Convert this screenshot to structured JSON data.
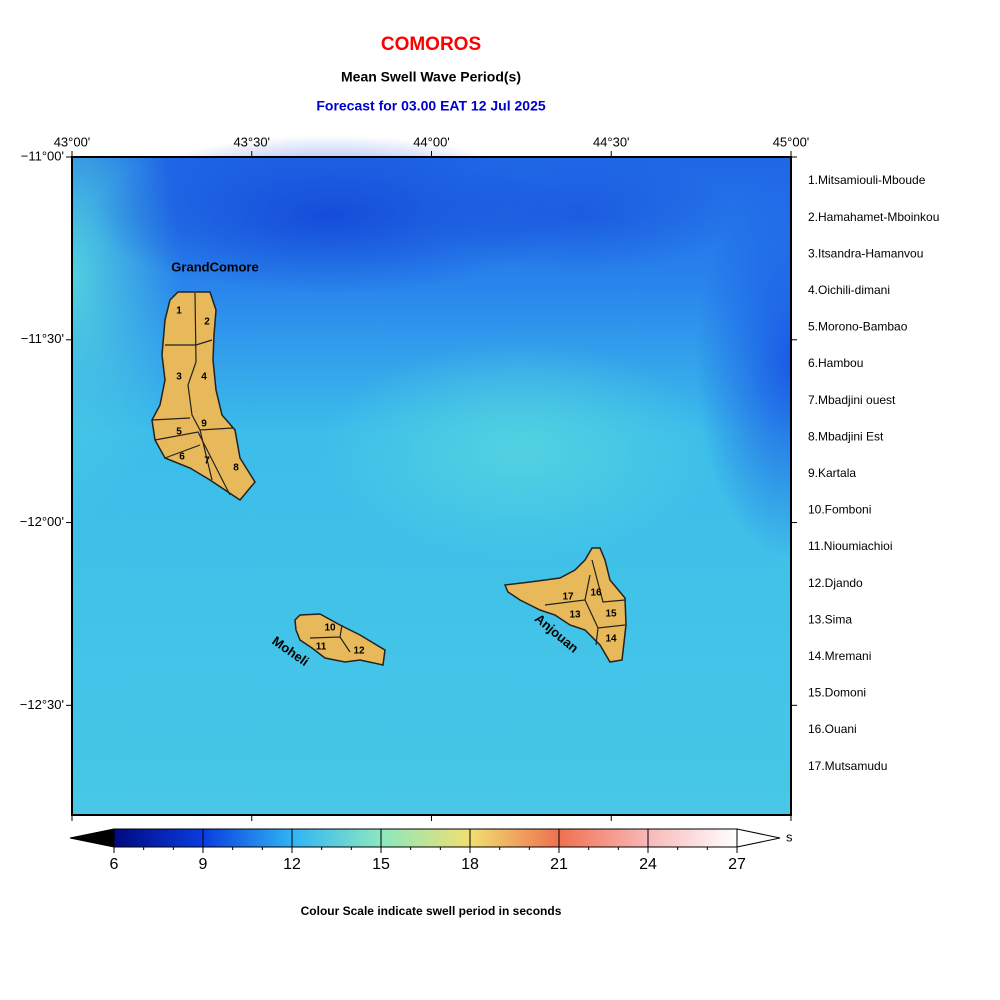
{
  "header": {
    "title": "COMOROS",
    "subtitle": "Mean Swell Wave Period(s)",
    "forecast": "Forecast for  03.00 EAT 12 Jul 2025"
  },
  "map": {
    "lonlim": [
      43,
      45
    ],
    "latlim": [
      -11,
      -12.8
    ],
    "lonticks": [
      {
        "value": 43,
        "label": "43°00'"
      },
      {
        "value": 43.5,
        "label": "43°30'"
      },
      {
        "value": 44,
        "label": "44°00'"
      },
      {
        "value": 44.5,
        "label": "44°30'"
      },
      {
        "value": 45,
        "label": "45°00'"
      }
    ],
    "latticks": [
      {
        "value": -11,
        "label": "−11°00'"
      },
      {
        "value": -11.5,
        "label": "−11°30'"
      },
      {
        "value": -12,
        "label": "−12°00'"
      },
      {
        "value": -12.5,
        "label": "−12°30'"
      }
    ],
    "islands": [
      "GrandComore",
      "Moheli",
      "Anjouan"
    ],
    "regions": [
      "1",
      "2",
      "3",
      "4",
      "5",
      "6",
      "7",
      "8",
      "9",
      "10",
      "11",
      "12",
      "13",
      "14",
      "15",
      "16",
      "17"
    ]
  },
  "legend": [
    "1.Mitsamiouli-Mboude",
    "2.Hamahamet-Mboinkou",
    "3.Itsandra-Hamanvou",
    "4.Oichili-dimani",
    "5.Morono-Bambao",
    "6.Hambou",
    "7.Mbadjini ouest",
    "8.Mbadjini Est",
    "9.Kartala",
    "10.Fomboni",
    "11.Nioumiachioi",
    "12.Djando",
    "13.Sima",
    "14.Mremani",
    "15.Domoni",
    "16.Ouani",
    "17.Mutsamudu"
  ],
  "colorbar": {
    "ticks": [
      6,
      9,
      12,
      15,
      18,
      21,
      24,
      27
    ],
    "colors": [
      "#000a80",
      "#0a3ce0",
      "#2fb4f5",
      "#8be8c0",
      "#f0e070",
      "#f07050",
      "#f8b8b8",
      "#ffffff"
    ],
    "unit": "s",
    "caption": "Colour Scale indicate swell period in seconds"
  }
}
